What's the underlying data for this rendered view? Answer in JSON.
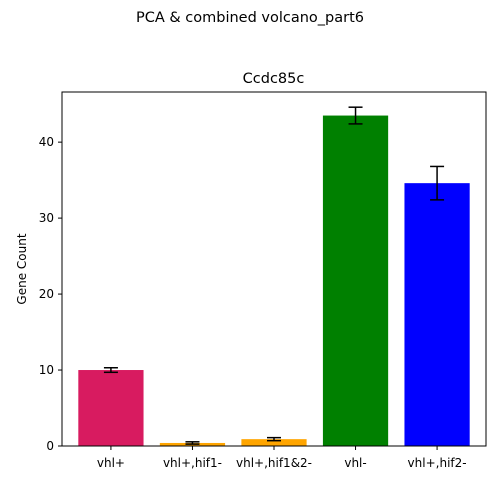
{
  "figure": {
    "suptitle": "PCA & combined volcano_part6"
  },
  "chart_data": {
    "type": "bar",
    "title": "Ccdc85c",
    "xlabel": "",
    "ylabel": "Gene Count",
    "ylim": [
      0,
      46.6
    ],
    "yticks": [
      0,
      10,
      20,
      30,
      40
    ],
    "grid": false,
    "categories": [
      "vhl+",
      "vhl+,hif1-",
      "vhl+,hif1&2-",
      "vhl-",
      "vhl+,hif2-"
    ],
    "values": [
      10.0,
      0.4,
      0.9,
      43.5,
      34.6
    ],
    "errors": [
      0.3,
      0.15,
      0.2,
      1.1,
      2.2
    ],
    "colors": [
      "#d81b60",
      "#ffa500",
      "#ffa500",
      "#008000",
      "#0000ff"
    ]
  }
}
